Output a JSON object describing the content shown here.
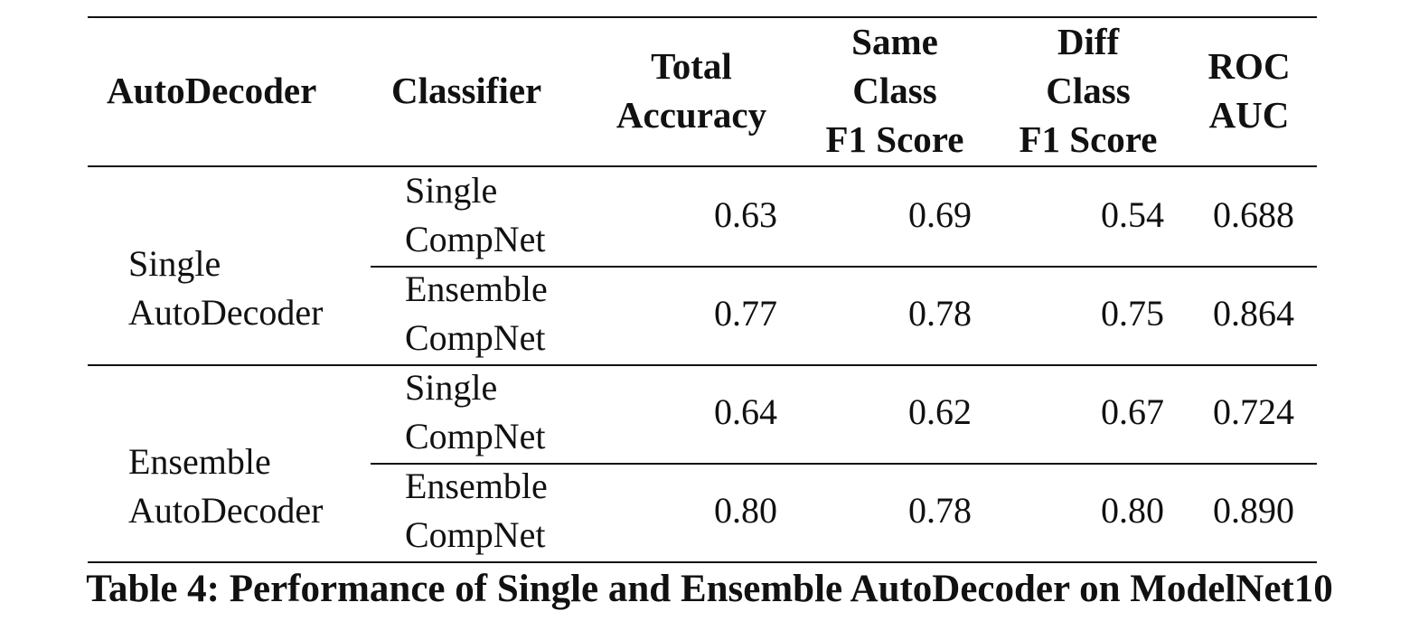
{
  "table": {
    "headers": {
      "autodecoder": "AutoDecoder",
      "classifier": "Classifier",
      "total_accuracy": [
        "Total",
        "Accuracy"
      ],
      "same_class_f1": [
        "Same",
        "Class",
        "F1 Score"
      ],
      "diff_class_f1": [
        "Diff",
        "Class",
        "F1 Score"
      ],
      "roc_auc": [
        "ROC",
        "AUC"
      ]
    },
    "groups": [
      {
        "autodecoder": [
          "Single",
          "AutoDecoder"
        ],
        "rows": [
          {
            "classifier": [
              "Single",
              "CompNet"
            ],
            "total_accuracy": "0.63",
            "same_class_f1": "0.69",
            "diff_class_f1": "0.54",
            "roc_auc": "0.688"
          },
          {
            "classifier": [
              "Ensemble",
              "CompNet"
            ],
            "total_accuracy": "0.77",
            "same_class_f1": "0.78",
            "diff_class_f1": "0.75",
            "roc_auc": "0.864"
          }
        ]
      },
      {
        "autodecoder": [
          "Ensemble",
          "AutoDecoder"
        ],
        "rows": [
          {
            "classifier": [
              "Single",
              "CompNet"
            ],
            "total_accuracy": "0.64",
            "same_class_f1": "0.62",
            "diff_class_f1": "0.67",
            "roc_auc": "0.724"
          },
          {
            "classifier": [
              "Ensemble",
              "CompNet"
            ],
            "total_accuracy": "0.80",
            "same_class_f1": "0.78",
            "diff_class_f1": "0.80",
            "roc_auc": "0.890"
          }
        ]
      }
    ]
  },
  "caption": "Table 4: Performance of Single and Ensemble AutoDecoder on ModelNet10"
}
